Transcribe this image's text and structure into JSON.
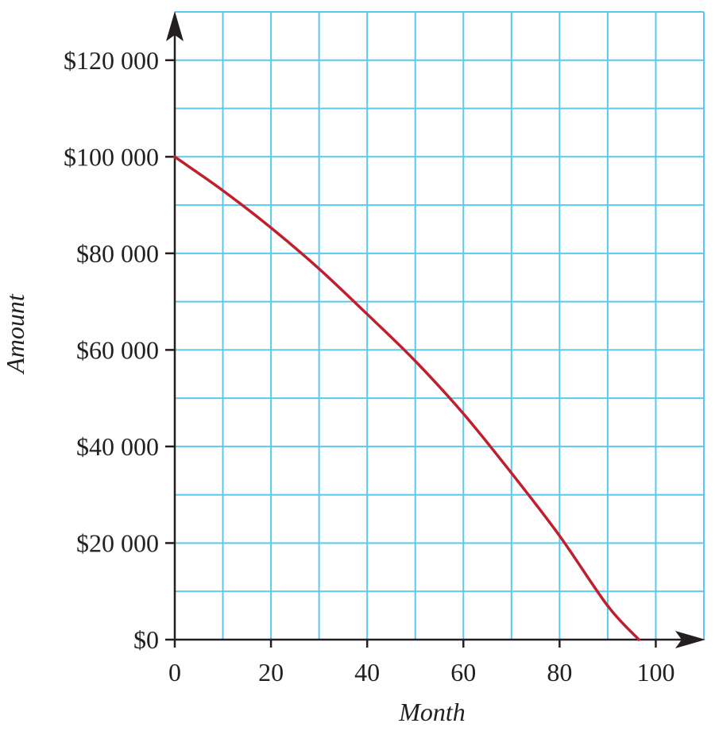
{
  "chart_data": {
    "type": "line",
    "title": "",
    "xlabel": "Month",
    "ylabel": "Amount",
    "xlim": [
      0,
      110
    ],
    "ylim": [
      0,
      130000
    ],
    "x_ticks": [
      0,
      20,
      40,
      60,
      80,
      100
    ],
    "x_tick_labels": [
      "0",
      "20",
      "40",
      "60",
      "80",
      "100"
    ],
    "y_ticks": [
      0,
      20000,
      40000,
      60000,
      80000,
      100000,
      120000
    ],
    "y_tick_labels": [
      "$0",
      "$20 000",
      "$40 000",
      "$60 000",
      "$80 000",
      "$100 000",
      "$120 000"
    ],
    "grid": true,
    "grid_x_step": 10,
    "grid_y_step": 10000,
    "colors": {
      "grid": "#5cc8f0",
      "line": "#c0202e",
      "axis": "#231f20"
    },
    "series": [
      {
        "values": [
          {
            "x": 0,
            "y": 100000
          },
          {
            "x": 10,
            "y": 93000
          },
          {
            "x": 20,
            "y": 85300
          },
          {
            "x": 30,
            "y": 76800
          },
          {
            "x": 40,
            "y": 67400
          },
          {
            "x": 50,
            "y": 57700
          },
          {
            "x": 60,
            "y": 46800
          },
          {
            "x": 70,
            "y": 34500
          },
          {
            "x": 80,
            "y": 21500
          },
          {
            "x": 90,
            "y": 7000
          },
          {
            "x": 96.5,
            "y": 0
          }
        ]
      }
    ]
  }
}
